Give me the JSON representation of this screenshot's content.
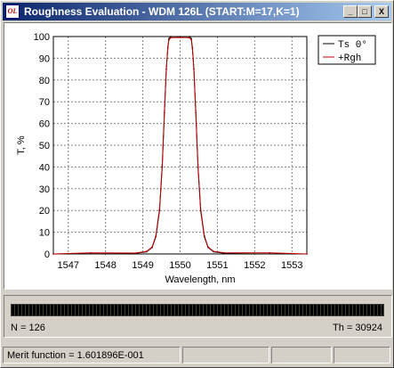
{
  "window": {
    "title": "Roughness Evaluation - WDM 126L (START:M=17,K=1)",
    "icon_label": "OL",
    "minimize_glyph": "_",
    "maximize_glyph": "□",
    "close_glyph": "X"
  },
  "chart_data": {
    "type": "line",
    "xlabel": "Wavelength, nm",
    "ylabel": "T, %",
    "xlim": [
      1546.6,
      1553.4
    ],
    "ylim": [
      0,
      100
    ],
    "x_ticks": [
      1547,
      1548,
      1549,
      1550,
      1551,
      1552,
      1553
    ],
    "y_ticks": [
      0,
      10,
      20,
      30,
      40,
      50,
      60,
      70,
      80,
      90,
      100
    ],
    "grid": true,
    "legend_position": "top-right",
    "series": [
      {
        "name": "Ts 0°",
        "color": "#000000",
        "x": [
          1546.6,
          1548.0,
          1548.8,
          1549.1,
          1549.25,
          1549.35,
          1549.45,
          1549.52,
          1549.58,
          1549.63,
          1549.67,
          1549.7,
          1549.75,
          1550.0,
          1550.25,
          1550.3,
          1550.33,
          1550.37,
          1550.42,
          1550.48,
          1550.55,
          1550.65,
          1550.75,
          1550.9,
          1551.2,
          1552.0,
          1553.4
        ],
        "y": [
          0,
          0,
          0.3,
          1,
          3,
          8,
          20,
          40,
          65,
          85,
          95,
          99,
          100,
          100,
          100,
          99,
          95,
          85,
          65,
          40,
          20,
          8,
          3,
          1,
          0.3,
          0,
          0
        ]
      },
      {
        "name": "+Rgh",
        "color": "#c00000",
        "x": [
          1546.6,
          1547.6,
          1548.8,
          1549.1,
          1549.25,
          1549.35,
          1549.45,
          1549.52,
          1549.58,
          1549.63,
          1549.67,
          1549.7,
          1549.75,
          1550.0,
          1550.25,
          1550.3,
          1550.33,
          1550.37,
          1550.42,
          1550.48,
          1550.55,
          1550.65,
          1550.75,
          1550.9,
          1551.2,
          1552.4,
          1553.4
        ],
        "y": [
          0,
          0.5,
          0.4,
          1.2,
          3.2,
          8.5,
          21,
          41,
          66,
          85,
          94.5,
          98.5,
          99.5,
          99.6,
          99.5,
          98.5,
          94.5,
          85,
          66,
          41,
          21,
          8.5,
          3.2,
          1.2,
          0.5,
          0.5,
          0
        ]
      }
    ]
  },
  "progress": {
    "fraction": 1.0,
    "n_label": "N = 126",
    "th_label": "Th = 30924"
  },
  "statusbar": {
    "merit_label": "Merit function =  1.601896E-001",
    "cell2": "",
    "cell3": "",
    "cell4": ""
  }
}
